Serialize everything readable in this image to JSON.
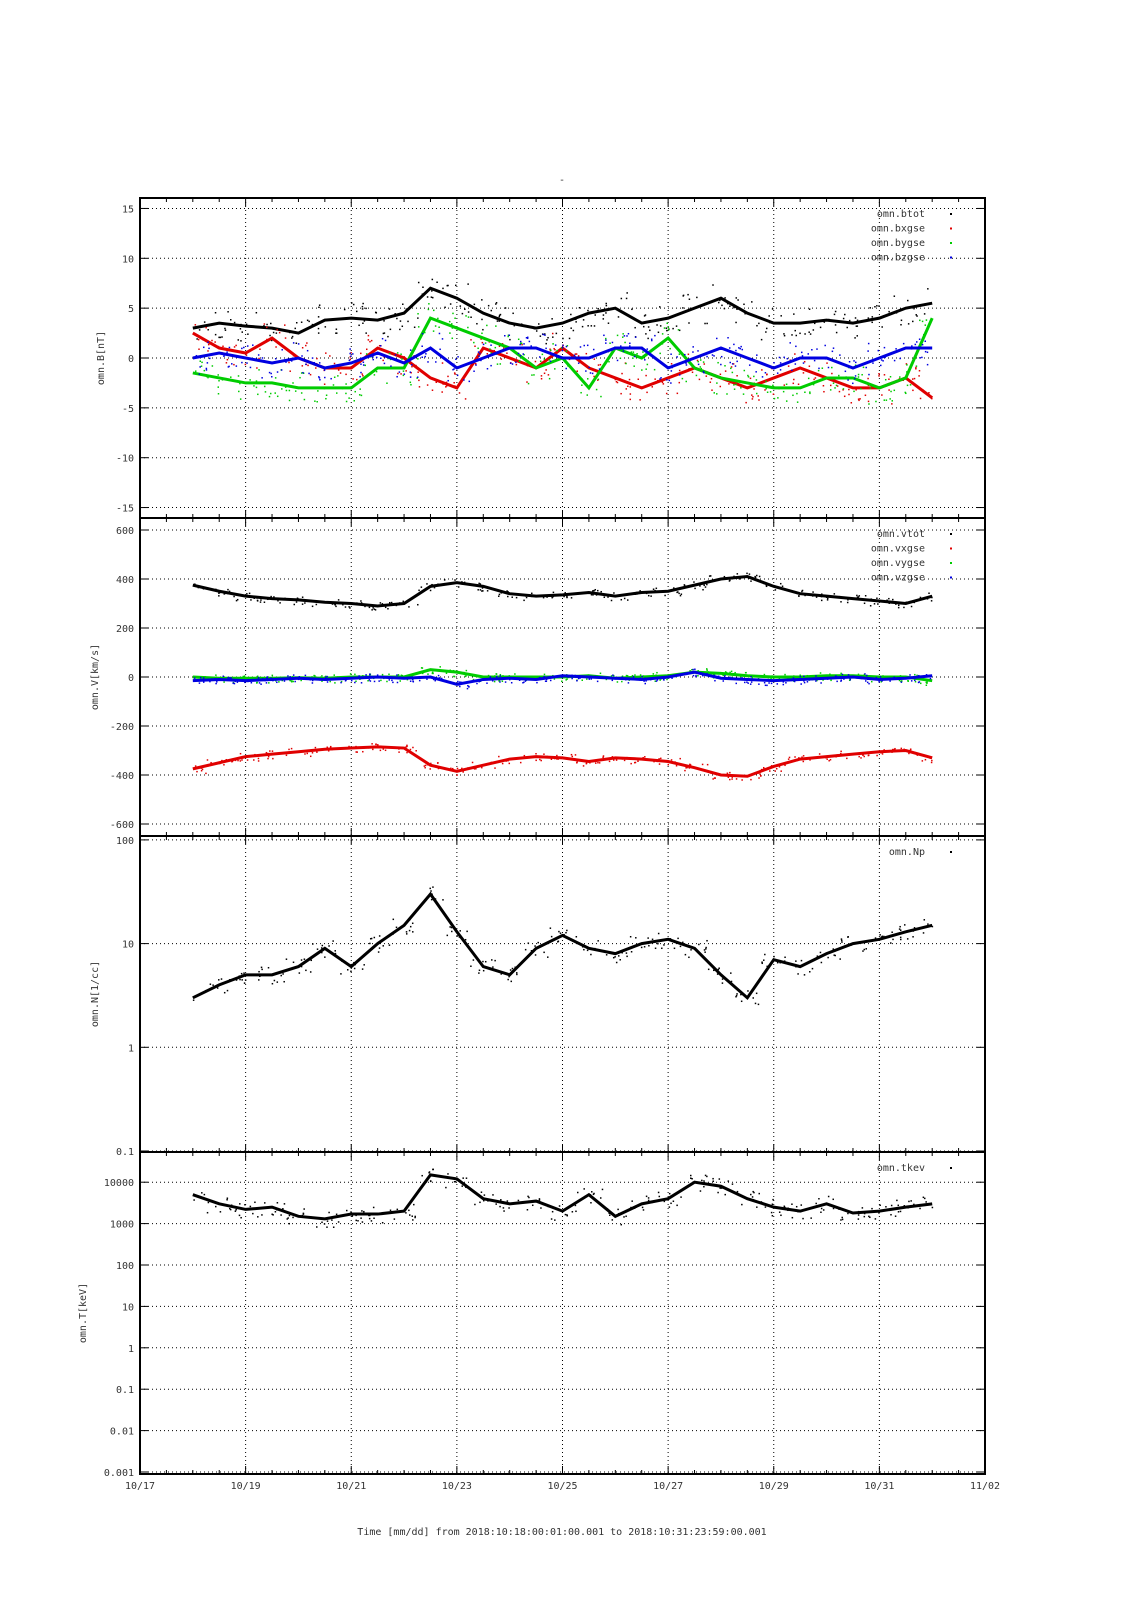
{
  "chart_data": [
    {
      "type": "scatter",
      "title": "-",
      "ylabel": "omn.B[nT]",
      "yscale": "linear",
      "ylim": [
        -16,
        16
      ],
      "yticks": [
        15,
        10,
        5,
        0,
        -5,
        -10,
        -15
      ],
      "x_days_since_10_17": [
        1,
        1.5,
        2,
        2.5,
        3,
        3.5,
        4,
        4.5,
        5,
        5.5,
        6,
        6.5,
        7,
        7.5,
        8,
        8.5,
        9,
        9.5,
        10,
        10.5,
        11,
        11.5,
        12,
        12.5,
        13,
        13.5,
        14,
        14.5,
        15
      ],
      "series": [
        {
          "name": "omn.btot",
          "color": "#000000",
          "values": [
            3,
            3.5,
            3.2,
            3,
            2.5,
            3.8,
            4,
            3.8,
            4.5,
            7,
            6,
            4.5,
            3.5,
            3,
            3.5,
            4.5,
            5,
            3.5,
            4,
            5,
            6,
            4.5,
            3.5,
            3.5,
            3.8,
            3.5,
            4,
            5,
            5.5
          ]
        },
        {
          "name": "omn.bxgse",
          "color": "#e00000",
          "values": [
            2.5,
            1,
            0.5,
            2,
            0,
            -1,
            -1,
            1,
            0,
            -2,
            -3,
            1,
            0,
            -1,
            1,
            -1,
            -2,
            -3,
            -2,
            -1,
            -2,
            -3,
            -2,
            -1,
            -2,
            -3,
            -3,
            -2,
            -4
          ]
        },
        {
          "name": "omn.bygse",
          "color": "#00cc00",
          "values": [
            -1.5,
            -2,
            -2.5,
            -2.5,
            -3,
            -3,
            -3,
            -1,
            -1,
            4,
            3,
            2,
            1,
            -1,
            0,
            -3,
            1,
            0,
            2,
            -1,
            -2,
            -2.5,
            -3,
            -3,
            -2,
            -2,
            -3,
            -2,
            4
          ]
        },
        {
          "name": "omn.bzgse",
          "color": "#0000e0",
          "values": [
            0,
            0.5,
            0,
            -0.5,
            0,
            -1,
            -0.5,
            0.5,
            -0.5,
            1,
            -1,
            0,
            1,
            1,
            0,
            0,
            1,
            1,
            -1,
            0,
            1,
            0,
            -1,
            0,
            0,
            -1,
            0,
            1,
            1
          ]
        }
      ]
    },
    {
      "type": "scatter",
      "ylabel": "omn.V[km/s]",
      "yscale": "linear",
      "ylim": [
        -650,
        650
      ],
      "yticks": [
        600,
        400,
        200,
        0,
        -200,
        -400,
        -600
      ],
      "x_days_since_10_17": [
        1,
        1.5,
        2,
        2.5,
        3,
        3.5,
        4,
        4.5,
        5,
        5.5,
        6,
        6.5,
        7,
        7.5,
        8,
        8.5,
        9,
        9.5,
        10,
        10.5,
        11,
        11.5,
        12,
        12.5,
        13,
        13.5,
        14,
        14.5,
        15
      ],
      "series": [
        {
          "name": "omn.vtot",
          "color": "#000000",
          "values": [
            375,
            350,
            330,
            320,
            315,
            305,
            300,
            290,
            300,
            370,
            385,
            370,
            340,
            330,
            335,
            345,
            330,
            345,
            350,
            375,
            400,
            410,
            370,
            340,
            330,
            320,
            310,
            300,
            330
          ]
        },
        {
          "name": "omn.vxgse",
          "color": "#e00000",
          "values": [
            -375,
            -350,
            -325,
            -315,
            -305,
            -295,
            -290,
            -285,
            -290,
            -360,
            -385,
            -360,
            -335,
            -325,
            -330,
            -345,
            -330,
            -335,
            -345,
            -370,
            -400,
            -405,
            -365,
            -335,
            -325,
            -315,
            -305,
            -300,
            -330
          ]
        },
        {
          "name": "omn.vygse",
          "color": "#00cc00",
          "values": [
            0,
            -5,
            -5,
            -5,
            -3,
            -5,
            0,
            0,
            0,
            30,
            20,
            0,
            0,
            0,
            0,
            5,
            -5,
            0,
            5,
            20,
            15,
            5,
            0,
            0,
            5,
            5,
            0,
            0,
            -15
          ]
        },
        {
          "name": "omn.vzgse",
          "color": "#0000e0",
          "values": [
            -15,
            -10,
            -15,
            -10,
            -5,
            -10,
            -5,
            0,
            -5,
            0,
            -30,
            -10,
            -5,
            -10,
            5,
            0,
            -5,
            -10,
            0,
            20,
            -5,
            -10,
            -15,
            -10,
            -5,
            0,
            -10,
            -5,
            5
          ]
        }
      ]
    },
    {
      "type": "scatter",
      "ylabel": "omn.N[1/cc]",
      "yscale": "log",
      "ylim": [
        0.1,
        100
      ],
      "yticks": [
        "100",
        "10",
        "1",
        "0.1"
      ],
      "x_days_since_10_17": [
        1,
        1.5,
        2,
        2.5,
        3,
        3.5,
        4,
        4.5,
        5,
        5.5,
        6,
        6.5,
        7,
        7.5,
        8,
        8.5,
        9,
        9.5,
        10,
        10.5,
        11,
        11.5,
        12,
        12.5,
        13,
        13.5,
        14,
        14.5,
        15
      ],
      "series": [
        {
          "name": "omn.Np",
          "color": "#000000",
          "values": [
            3,
            4,
            5,
            5,
            6,
            9,
            6,
            10,
            15,
            30,
            13,
            6,
            5,
            9,
            12,
            9,
            8,
            10,
            11,
            9,
            5,
            3,
            7,
            6,
            8,
            10,
            11,
            13,
            15
          ]
        }
      ]
    },
    {
      "type": "scatter",
      "ylabel": "omn.T[keV]",
      "yscale": "log",
      "ylim": [
        0.001,
        50000
      ],
      "yticks": [
        "10000",
        "1000",
        "100",
        "10",
        "1",
        "0.1",
        "0.01",
        "0.001"
      ],
      "x_days_since_10_17": [
        1,
        1.5,
        2,
        2.5,
        3,
        3.5,
        4,
        4.5,
        5,
        5.5,
        6,
        6.5,
        7,
        7.5,
        8,
        8.5,
        9,
        9.5,
        10,
        10.5,
        11,
        11.5,
        12,
        12.5,
        13,
        13.5,
        14,
        14.5,
        15
      ],
      "series": [
        {
          "name": "omn.tkev",
          "color": "#000000",
          "values": [
            5000,
            3000,
            2200,
            2500,
            1500,
            1300,
            1700,
            1700,
            2000,
            15000,
            12000,
            4000,
            3000,
            3500,
            2000,
            5000,
            1500,
            3000,
            4000,
            10000,
            8000,
            4000,
            2500,
            2000,
            3000,
            1800,
            2000,
            2500,
            3000
          ]
        }
      ]
    }
  ],
  "xaxis": {
    "ticklabels": [
      "10/17",
      "10/19",
      "10/21",
      "10/23",
      "10/25",
      "10/27",
      "10/29",
      "10/31",
      "11/02"
    ],
    "xlim_days": [
      0,
      16
    ],
    "label": "Time [mm/dd]  from 2018:10:18:00:01:00.001  to  2018:10:31:23:59:00.001"
  }
}
